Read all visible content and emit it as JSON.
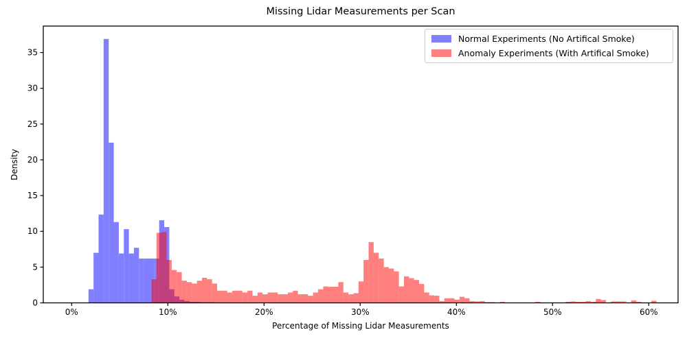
{
  "title": "Missing Lidar Measurements per Scan",
  "axes": {
    "xlabel": "Percentage of Missing Lidar Measurements",
    "ylabel": "Density",
    "x_tick_labels": [
      "0%",
      "10%",
      "20%",
      "30%",
      "40%",
      "50%",
      "60%"
    ],
    "x_tick_values": [
      0,
      10,
      20,
      30,
      40,
      50,
      60
    ],
    "y_tick_labels": [
      "0",
      "5",
      "10",
      "15",
      "20",
      "25",
      "30",
      "35"
    ],
    "y_tick_values": [
      0,
      5,
      10,
      15,
      20,
      25,
      30,
      35
    ],
    "xlim": [
      -2.95,
      63.05
    ],
    "ylim": [
      0,
      38.7
    ],
    "grid": false
  },
  "legend": {
    "position": "upper right",
    "entries": [
      {
        "label": "Normal Experiments (No Artifical Smoke)",
        "color": "#7f7fff"
      },
      {
        "label": "Anomaly Experiments (With Artifical Smoke)",
        "color": "#ff8080"
      }
    ]
  },
  "colors": {
    "normal_fill": "#7f7fff",
    "anomaly_fill": "rgba(255,0,0,0.5)",
    "overlap_observed": "#bf407f",
    "axis": "#000000"
  },
  "chart_data": {
    "type": "bar",
    "subtype": "overlapping-histogram",
    "title": "Missing Lidar Measurements per Scan",
    "xlabel": "Percentage of Missing Lidar Measurements",
    "ylabel": "Density",
    "bin_width_pct": 0.525,
    "series": [
      {
        "name": "Normal Experiments (No Artifical Smoke)",
        "fill": "#7f7fff",
        "start_pct": 1.75,
        "densities": [
          1.9,
          7.0,
          12.35,
          36.9,
          22.4,
          11.3,
          6.9,
          10.3,
          6.9,
          7.7,
          6.2,
          6.2,
          6.2,
          6.2,
          11.55,
          10.6,
          1.9,
          0.9,
          0.45,
          0.25,
          0.15,
          0.15,
          0.1,
          0.1,
          0.1
        ]
      },
      {
        "name": "Anomaly Experiments (With Artifical Smoke)",
        "fill": "rgba(255,0,0,0.5)",
        "start_pct": 8.3,
        "densities": [
          3.3,
          9.8,
          9.9,
          6.0,
          4.6,
          4.3,
          3.1,
          2.9,
          2.7,
          3.1,
          3.5,
          3.3,
          2.7,
          1.7,
          1.7,
          1.45,
          1.7,
          1.7,
          1.45,
          1.7,
          1.0,
          1.45,
          1.2,
          1.45,
          1.45,
          1.2,
          1.2,
          1.45,
          1.7,
          1.2,
          1.2,
          1.0,
          1.45,
          1.9,
          2.3,
          2.25,
          2.25,
          2.9,
          1.45,
          1.2,
          1.35,
          3.0,
          6.0,
          8.5,
          7.0,
          6.2,
          5.0,
          4.8,
          4.4,
          2.3,
          3.7,
          3.45,
          3.2,
          2.65,
          1.45,
          1.05,
          1.0,
          0.25,
          0.65,
          0.65,
          0.45,
          0.85,
          0.65,
          0.25,
          0.2,
          0.25,
          0.1,
          0.1,
          0.05,
          0.15,
          0,
          0,
          0,
          0,
          0,
          0,
          0.15,
          0,
          0,
          0,
          0,
          0,
          0.15,
          0.2,
          0.15,
          0.15,
          0.25,
          0.15,
          0.55,
          0.4,
          0,
          0.2,
          0.2,
          0.2,
          0,
          0.35,
          0.15,
          0,
          0,
          0.3
        ]
      }
    ]
  }
}
